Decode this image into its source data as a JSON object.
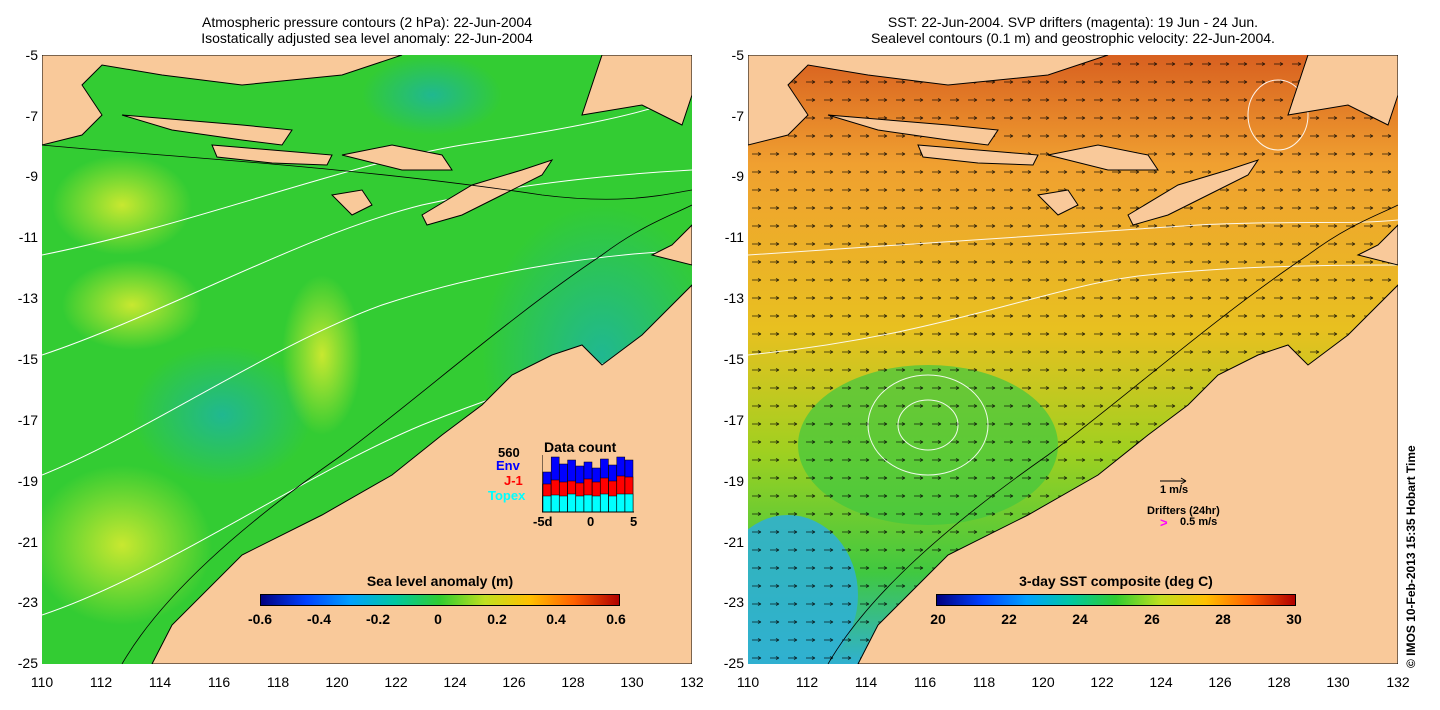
{
  "left_panel": {
    "title_line1": "Atmospheric pressure contours (2 hPa): 22-Jun-2004",
    "title_line2": "Isostatically adjusted sea level anomaly: 22-Jun-2004",
    "colorbar_label": "Sea level anomaly (m)",
    "colorbar_ticks": [
      "-0.6",
      "-0.4",
      "-0.2",
      "0",
      "0.2",
      "0.4",
      "0.6"
    ],
    "data_count": {
      "title": "Data count",
      "max_label": "560",
      "series": [
        {
          "name": "Env",
          "color": "#0000ff"
        },
        {
          "name": "J-1",
          "color": "#ff0000"
        },
        {
          "name": "Topex",
          "color": "#00ffff"
        }
      ],
      "x_ticks": [
        "-5d",
        "0",
        "5"
      ]
    }
  },
  "right_panel": {
    "title_line1": "SST: 22-Jun-2004. SVP drifters (magenta): 19 Jun - 24 Jun.",
    "title_line2": "Sealevel contours (0.1 m) and geostrophic velocity: 22-Jun-2004.",
    "colorbar_label": "3-day SST composite (deg C)",
    "colorbar_ticks": [
      "20",
      "22",
      "24",
      "26",
      "28",
      "30"
    ],
    "velocity_scale_label": "1 m/s",
    "drifters_label": "Drifters (24hr)",
    "drifter_scale_label": "0.5 m/s",
    "drifter_marker": ">"
  },
  "axes": {
    "y_ticks": [
      "-5",
      "-7",
      "-9",
      "-11",
      "-13",
      "-15",
      "-17",
      "-19",
      "-21",
      "-23",
      "-25"
    ],
    "x_ticks": [
      "110",
      "112",
      "114",
      "116",
      "118",
      "120",
      "122",
      "124",
      "126",
      "128",
      "130",
      "132"
    ]
  },
  "credit": "© IMOS 10-Feb-2013 15:35 Hobart Time",
  "colors": {
    "land": "#f9c99a",
    "sla_base": "#33cc33",
    "sst_base": "#f0a030",
    "contour": "#ffffff",
    "coast": "#000000"
  }
}
